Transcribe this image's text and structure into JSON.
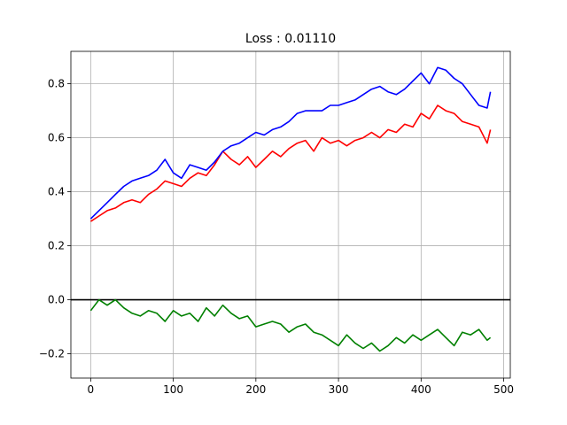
{
  "chart_data": {
    "type": "line",
    "title": "Loss : 0.01110",
    "xlabel": "",
    "ylabel": "",
    "xlim": [
      -24,
      508
    ],
    "ylim": [
      -0.29,
      0.92
    ],
    "grid": true,
    "x_ticks": [
      0,
      100,
      200,
      300,
      400,
      500
    ],
    "x_tick_labels": [
      "0",
      "100",
      "200",
      "300",
      "400",
      "500"
    ],
    "y_ticks": [
      -0.2,
      0.0,
      0.2,
      0.4,
      0.6,
      0.8
    ],
    "y_tick_labels": [
      "−0.2",
      "0.0",
      "0.2",
      "0.4",
      "0.6",
      "0.8"
    ],
    "hline": {
      "y": 0.0,
      "color": "#000000"
    },
    "x": [
      0,
      10,
      20,
      30,
      40,
      50,
      60,
      70,
      80,
      90,
      100,
      110,
      120,
      130,
      140,
      150,
      160,
      170,
      180,
      190,
      200,
      210,
      220,
      230,
      240,
      250,
      260,
      270,
      280,
      290,
      300,
      310,
      320,
      330,
      340,
      350,
      360,
      370,
      380,
      390,
      400,
      410,
      420,
      430,
      440,
      450,
      460,
      470,
      480,
      484
    ],
    "series": [
      {
        "color": "#0000ff",
        "values": [
          0.3,
          0.33,
          0.36,
          0.39,
          0.42,
          0.44,
          0.45,
          0.46,
          0.48,
          0.52,
          0.47,
          0.45,
          0.5,
          0.49,
          0.48,
          0.51,
          0.55,
          0.57,
          0.58,
          0.6,
          0.62,
          0.61,
          0.63,
          0.64,
          0.66,
          0.69,
          0.7,
          0.7,
          0.7,
          0.72,
          0.72,
          0.73,
          0.74,
          0.76,
          0.78,
          0.79,
          0.77,
          0.76,
          0.78,
          0.81,
          0.84,
          0.8,
          0.86,
          0.85,
          0.82,
          0.8,
          0.76,
          0.72,
          0.71,
          0.77
        ]
      },
      {
        "color": "#ff0000",
        "values": [
          0.29,
          0.31,
          0.33,
          0.34,
          0.36,
          0.37,
          0.36,
          0.39,
          0.41,
          0.44,
          0.43,
          0.42,
          0.45,
          0.47,
          0.46,
          0.5,
          0.55,
          0.52,
          0.5,
          0.53,
          0.49,
          0.52,
          0.55,
          0.53,
          0.56,
          0.58,
          0.59,
          0.55,
          0.6,
          0.58,
          0.59,
          0.57,
          0.59,
          0.6,
          0.62,
          0.6,
          0.63,
          0.62,
          0.65,
          0.64,
          0.69,
          0.67,
          0.72,
          0.7,
          0.69,
          0.66,
          0.65,
          0.64,
          0.58,
          0.63
        ]
      },
      {
        "color": "#008000",
        "values": [
          -0.04,
          0.0,
          -0.02,
          0.0,
          -0.03,
          -0.05,
          -0.06,
          -0.04,
          -0.05,
          -0.08,
          -0.04,
          -0.06,
          -0.05,
          -0.08,
          -0.03,
          -0.06,
          -0.02,
          -0.05,
          -0.07,
          -0.06,
          -0.1,
          -0.09,
          -0.08,
          -0.09,
          -0.12,
          -0.1,
          -0.09,
          -0.12,
          -0.13,
          -0.15,
          -0.17,
          -0.13,
          -0.16,
          -0.18,
          -0.16,
          -0.19,
          -0.17,
          -0.14,
          -0.16,
          -0.13,
          -0.15,
          -0.13,
          -0.11,
          -0.14,
          -0.17,
          -0.12,
          -0.13,
          -0.11,
          -0.15,
          -0.14
        ]
      }
    ]
  }
}
